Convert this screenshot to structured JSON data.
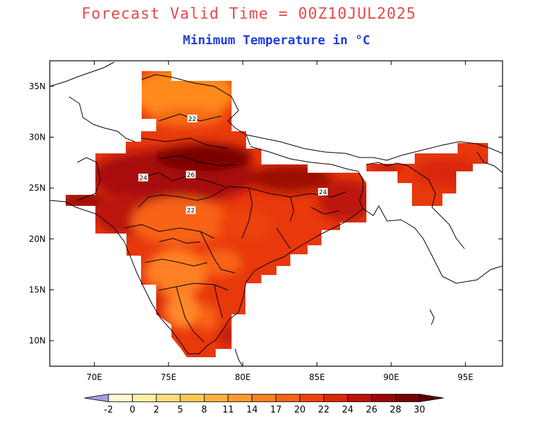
{
  "title": "Forecast Valid Time = 00Z10JUL2025",
  "subtitle": "Minimum Temperature in °C",
  "map": {
    "lon_range": [
      67,
      97.5
    ],
    "lat_range": [
      7.5,
      37.5
    ],
    "x_ticks": [
      {
        "value": 70,
        "label": "70E"
      },
      {
        "value": 75,
        "label": "75E"
      },
      {
        "value": 80,
        "label": "80E"
      },
      {
        "value": 85,
        "label": "85E"
      },
      {
        "value": 90,
        "label": "90E"
      },
      {
        "value": 95,
        "label": "95E"
      }
    ],
    "y_ticks": [
      {
        "value": 35,
        "label": "35N"
      },
      {
        "value": 30,
        "label": "30N"
      },
      {
        "value": 25,
        "label": "25N"
      },
      {
        "value": 20,
        "label": "20N"
      },
      {
        "value": 15,
        "label": "15N"
      },
      {
        "value": 10,
        "label": "10N"
      }
    ],
    "contour_labels": [
      {
        "lon": 76.6,
        "lat": 31.8,
        "text": "22"
      },
      {
        "lon": 73.3,
        "lat": 26.0,
        "text": "24"
      },
      {
        "lon": 76.5,
        "lat": 26.3,
        "text": "26"
      },
      {
        "lon": 76.5,
        "lat": 22.8,
        "text": "22"
      },
      {
        "lon": 85.4,
        "lat": 24.6,
        "text": "24"
      }
    ]
  },
  "colorbar": {
    "levels": [
      "-2",
      "0",
      "2",
      "5",
      "8",
      "11",
      "14",
      "17",
      "20",
      "22",
      "24",
      "26",
      "28",
      "30"
    ],
    "colors": [
      "#a0a0e6",
      "#fffcd2",
      "#fff0a0",
      "#ffdc78",
      "#ffc850",
      "#ffb040",
      "#ff9a30",
      "#ff8020",
      "#f86414",
      "#ec420c",
      "#d82808",
      "#bc1208",
      "#9c0806",
      "#780404",
      "#5a0202"
    ]
  }
}
